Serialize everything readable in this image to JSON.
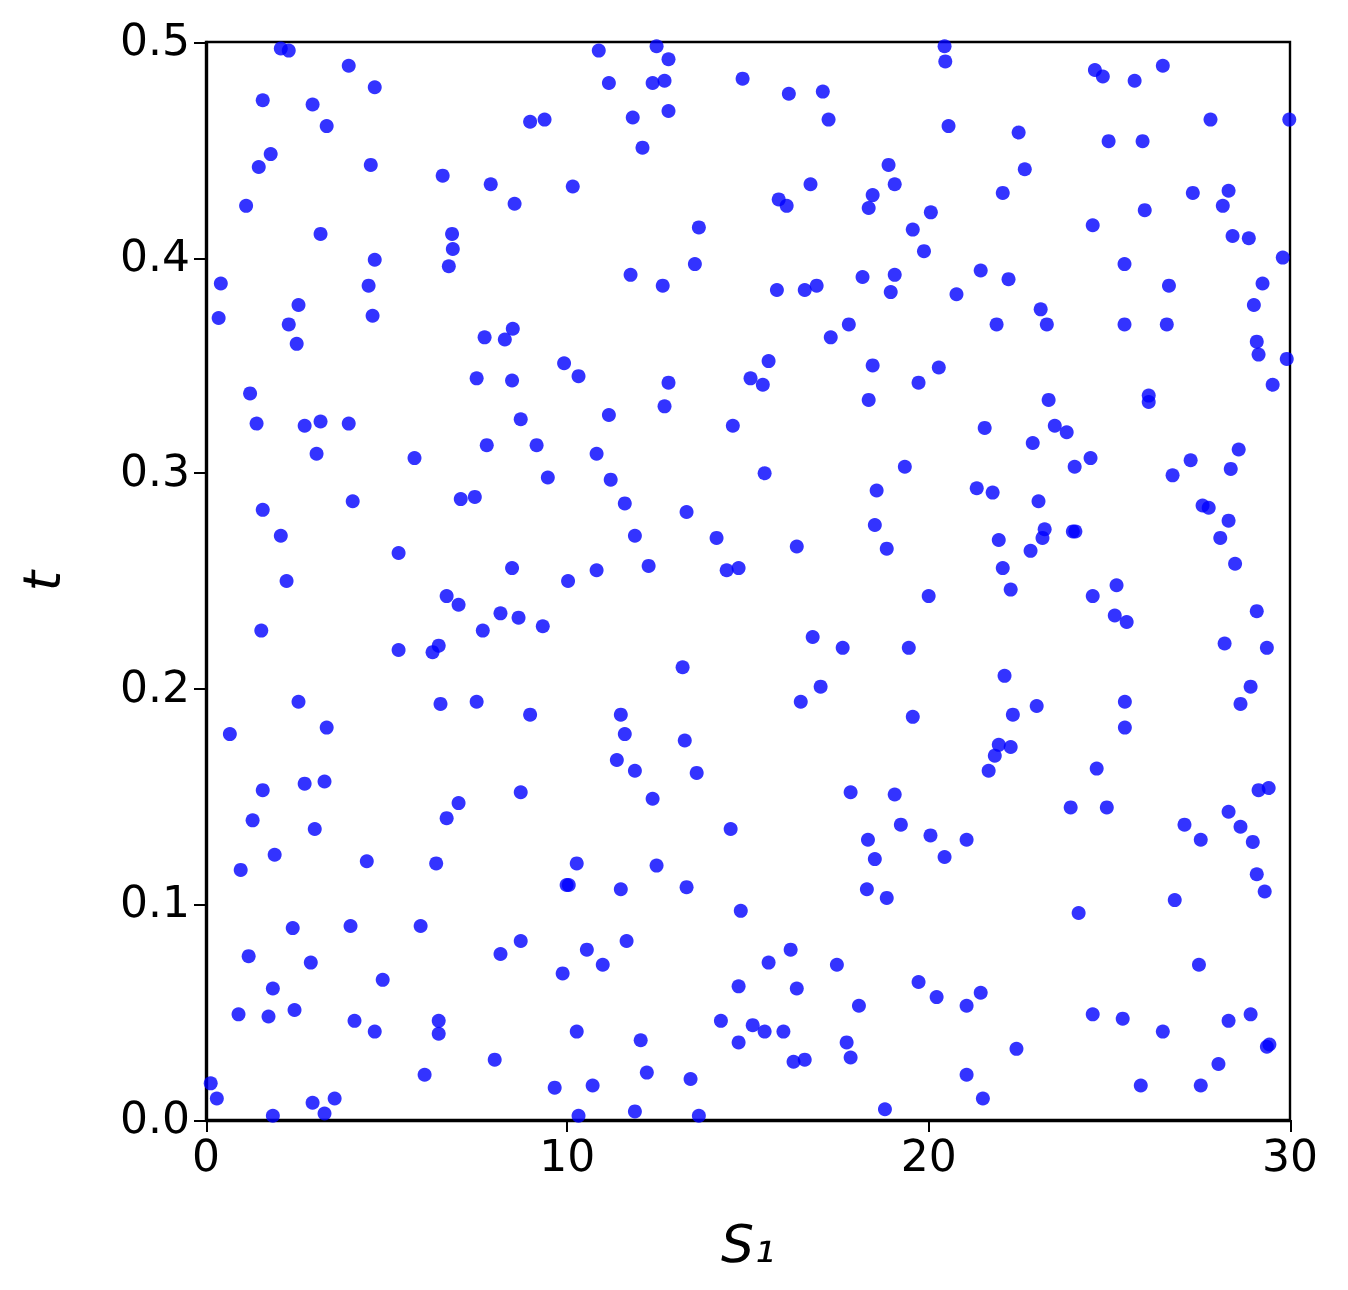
{
  "chart_data": {
    "type": "scatter",
    "xlabel": "S₁",
    "ylabel": "t",
    "x": [
      2.07,
      2.29,
      3.95,
      4.67,
      1.57,
      2.95,
      3.34,
      8.97,
      9.37,
      1.79,
      1.46,
      4.56,
      6.55,
      7.88,
      8.54,
      1.11,
      3.17,
      6.81,
      6.83,
      4.67,
      6.72,
      0.41,
      4.5,
      2.56,
      0.35,
      2.29,
      4.61,
      2.51,
      7.71,
      8.27,
      8.49,
      9.91,
      7.49,
      8.47,
      1.22,
      1.4,
      2.73,
      3.17,
      3.95,
      8.71,
      3.06,
      5.77,
      7.77,
      9.15,
      9.46,
      1.57,
      4.06,
      7.05,
      7.44,
      2.07,
      5.33,
      8.47,
      2.23,
      10.87,
      12.47,
      12.8,
      11.15,
      12.36,
      12.69,
      14.85,
      16.13,
      17.07,
      11.81,
      12.8,
      17.23,
      12.08,
      10.15,
      18.89,
      16.73,
      19.06,
      15.85,
      16.07,
      18.45,
      18.34,
      19.56,
      19.87,
      13.64,
      13.53,
      11.75,
      12.64,
      15.8,
      16.57,
      16.9,
      18.17,
      19.06,
      18.95,
      17.79,
      17.29,
      10.31,
      12.8,
      15.57,
      15.07,
      15.41,
      18.45,
      19.72,
      18.34,
      11.15,
      12.69,
      14.58,
      10.81,
      11.2,
      15.46,
      19.34,
      18.56,
      11.59,
      13.3,
      11.87,
      14.13,
      18.51,
      16.35,
      18.84,
      10.81,
      12.25,
      14.41,
      14.74,
      10.02,
      20.44,
      20.46,
      24.6,
      24.82,
      25.7,
      26.48,
      20.55,
      22.49,
      27.8,
      29.98,
      24.98,
      25.92,
      22.66,
      22.05,
      27.31,
      28.3,
      28.14,
      20.06,
      25.98,
      24.54,
      28.41,
      28.86,
      29.8,
      21.44,
      22.21,
      25.42,
      20.77,
      26.65,
      29.24,
      23.1,
      21.88,
      23.27,
      25.42,
      26.59,
      29.0,
      29.08,
      29.13,
      29.91,
      20.28,
      29.52,
      26.09,
      26.09,
      23.32,
      21.55,
      23.49,
      23.82,
      22.88,
      28.58,
      24.48,
      24.04,
      27.25,
      26.75,
      28.36,
      21.33,
      21.77,
      23.04,
      27.58,
      27.75,
      28.3,
      23.21,
      23.15,
      23.99,
      24.06,
      28.07,
      21.94,
      22.82,
      28.48,
      22.05,
      1.53,
      6.66,
      6.99,
      8.15,
      8.65,
      9.32,
      7.66,
      5.33,
      6.27,
      6.44,
      2.56,
      6.49,
      7.49,
      3.34,
      0.66,
      8.97,
      1.57,
      2.73,
      3.28,
      8.71,
      6.99,
      6.66,
      1.29,
      3.01,
      1.9,
      4.45,
      6.37,
      0.96,
      9.98,
      2.4,
      4.0,
      5.94,
      8.71,
      8.15,
      1.18,
      2.9,
      9.87,
      4.89,
      1.85,
      0.9,
      1.73,
      2.45,
      4.11,
      4.67,
      6.44,
      6.44,
      7.99,
      6.05,
      9.65,
      0.13,
      0.3,
      2.95,
      3.56,
      3.28,
      1.85,
      20.0,
      16.79,
      17.62,
      19.45,
      13.19,
      16.46,
      17.01,
      19.56,
      11.48,
      11.59,
      13.25,
      11.37,
      11.87,
      13.58,
      12.36,
      17.84,
      19.06,
      19.23,
      14.52,
      18.32,
      18.51,
      10.26,
      12.47,
      10.04,
      11.48,
      13.3,
      18.29,
      18.84,
      14.8,
      10.54,
      11.64,
      10.98,
      16.18,
      15.57,
      17.46,
      14.74,
      16.35,
      19.72,
      18.07,
      14.25,
      15.13,
      15.46,
      15.98,
      14.74,
      17.73,
      17.84,
      16.26,
      16.57,
      10.26,
      12.03,
      12.2,
      13.41,
      10.7,
      10.31,
      11.87,
      13.64,
      18.79,
      22.27,
      24.54,
      25.2,
      25.15,
      25.48,
      29.08,
      28.19,
      29.36,
      22.1,
      22.33,
      22.99,
      25.43,
      25.43,
      28.91,
      28.63,
      21.94,
      21.83,
      22.27,
      21.66,
      24.65,
      23.93,
      24.93,
      29.13,
      29.41,
      28.3,
      28.63,
      27.08,
      27.53,
      28.97,
      29.08,
      29.3,
      20.05,
      21.05,
      20.44,
      26.81,
      24.15,
      27.48,
      20.22,
      21.05,
      21.44,
      24.54,
      25.37,
      26.48,
      28.3,
      28.91,
      22.43,
      29.36,
      29.43,
      28.02,
      21.05,
      21.5,
      25.87,
      27.53
    ],
    "values": [
      0.497,
      0.496,
      0.489,
      0.479,
      0.473,
      0.471,
      0.461,
      0.463,
      0.464,
      0.448,
      0.442,
      0.443,
      0.438,
      0.434,
      0.425,
      0.424,
      0.411,
      0.411,
      0.404,
      0.399,
      0.396,
      0.388,
      0.387,
      0.378,
      0.372,
      0.369,
      0.373,
      0.36,
      0.363,
      0.362,
      0.367,
      0.351,
      0.344,
      0.343,
      0.337,
      0.323,
      0.322,
      0.324,
      0.323,
      0.325,
      0.309,
      0.307,
      0.313,
      0.313,
      0.298,
      0.283,
      0.287,
      0.288,
      0.289,
      0.271,
      0.263,
      0.256,
      0.25,
      0.496,
      0.498,
      0.492,
      0.481,
      0.481,
      0.482,
      0.483,
      0.476,
      0.477,
      0.465,
      0.468,
      0.464,
      0.451,
      0.433,
      0.443,
      0.434,
      0.434,
      0.427,
      0.424,
      0.429,
      0.423,
      0.413,
      0.403,
      0.414,
      0.397,
      0.392,
      0.387,
      0.385,
      0.385,
      0.387,
      0.391,
      0.392,
      0.384,
      0.369,
      0.363,
      0.345,
      0.342,
      0.352,
      0.344,
      0.341,
      0.35,
      0.342,
      0.334,
      0.327,
      0.331,
      0.322,
      0.309,
      0.297,
      0.3,
      0.303,
      0.292,
      0.286,
      0.282,
      0.271,
      0.27,
      0.276,
      0.266,
      0.265,
      0.255,
      0.257,
      0.255,
      0.256,
      0.25,
      0.498,
      0.491,
      0.487,
      0.484,
      0.482,
      0.489,
      0.461,
      0.458,
      0.464,
      0.464,
      0.454,
      0.454,
      0.441,
      0.43,
      0.43,
      0.431,
      0.424,
      0.421,
      0.422,
      0.415,
      0.41,
      0.409,
      0.4,
      0.394,
      0.39,
      0.397,
      0.383,
      0.387,
      0.388,
      0.376,
      0.369,
      0.369,
      0.369,
      0.369,
      0.378,
      0.361,
      0.355,
      0.353,
      0.349,
      0.341,
      0.336,
      0.333,
      0.334,
      0.321,
      0.322,
      0.319,
      0.314,
      0.311,
      0.307,
      0.303,
      0.306,
      0.299,
      0.302,
      0.293,
      0.291,
      0.287,
      0.285,
      0.284,
      0.278,
      0.274,
      0.27,
      0.273,
      0.273,
      0.27,
      0.269,
      0.264,
      0.258,
      0.256,
      0.227,
      0.243,
      0.239,
      0.235,
      0.233,
      0.229,
      0.227,
      0.218,
      0.217,
      0.22,
      0.194,
      0.193,
      0.194,
      0.182,
      0.179,
      0.188,
      0.153,
      0.156,
      0.157,
      0.152,
      0.147,
      0.14,
      0.139,
      0.135,
      0.123,
      0.12,
      0.119,
      0.116,
      0.109,
      0.089,
      0.09,
      0.09,
      0.083,
      0.077,
      0.076,
      0.073,
      0.068,
      0.065,
      0.061,
      0.049,
      0.048,
      0.051,
      0.046,
      0.041,
      0.046,
      0.04,
      0.028,
      0.021,
      0.015,
      0.017,
      0.01,
      0.008,
      0.01,
      0.003,
      0.002,
      0.243,
      0.224,
      0.219,
      0.219,
      0.21,
      0.194,
      0.201,
      0.187,
      0.188,
      0.179,
      0.176,
      0.167,
      0.162,
      0.161,
      0.149,
      0.152,
      0.151,
      0.137,
      0.135,
      0.13,
      0.121,
      0.119,
      0.118,
      0.109,
      0.107,
      0.108,
      0.107,
      0.103,
      0.097,
      0.079,
      0.083,
      0.072,
      0.079,
      0.073,
      0.072,
      0.062,
      0.061,
      0.064,
      0.053,
      0.046,
      0.044,
      0.041,
      0.041,
      0.036,
      0.036,
      0.029,
      0.027,
      0.028,
      0.041,
      0.037,
      0.022,
      0.019,
      0.016,
      0.002,
      0.004,
      0.002,
      0.005,
      0.246,
      0.243,
      0.248,
      0.234,
      0.231,
      0.236,
      0.221,
      0.219,
      0.206,
      0.188,
      0.192,
      0.194,
      0.182,
      0.201,
      0.193,
      0.174,
      0.169,
      0.173,
      0.162,
      0.163,
      0.145,
      0.145,
      0.153,
      0.154,
      0.143,
      0.136,
      0.137,
      0.13,
      0.129,
      0.114,
      0.106,
      0.132,
      0.13,
      0.122,
      0.102,
      0.096,
      0.072,
      0.057,
      0.053,
      0.059,
      0.049,
      0.047,
      0.041,
      0.046,
      0.049,
      0.033,
      0.034,
      0.035,
      0.026,
      0.021,
      0.01,
      0.016,
      0.016
    ],
    "color": "#0000ff",
    "marker": "circle",
    "grid": false,
    "xlim": [
      0,
      30
    ],
    "xticks": [
      0,
      10,
      20,
      30
    ],
    "ylim": [
      0,
      0.5
    ],
    "yticks": [
      {
        "value": 0,
        "label": "0.0"
      },
      0.1,
      0.2,
      0.3,
      0.4,
      0.5
    ]
  }
}
